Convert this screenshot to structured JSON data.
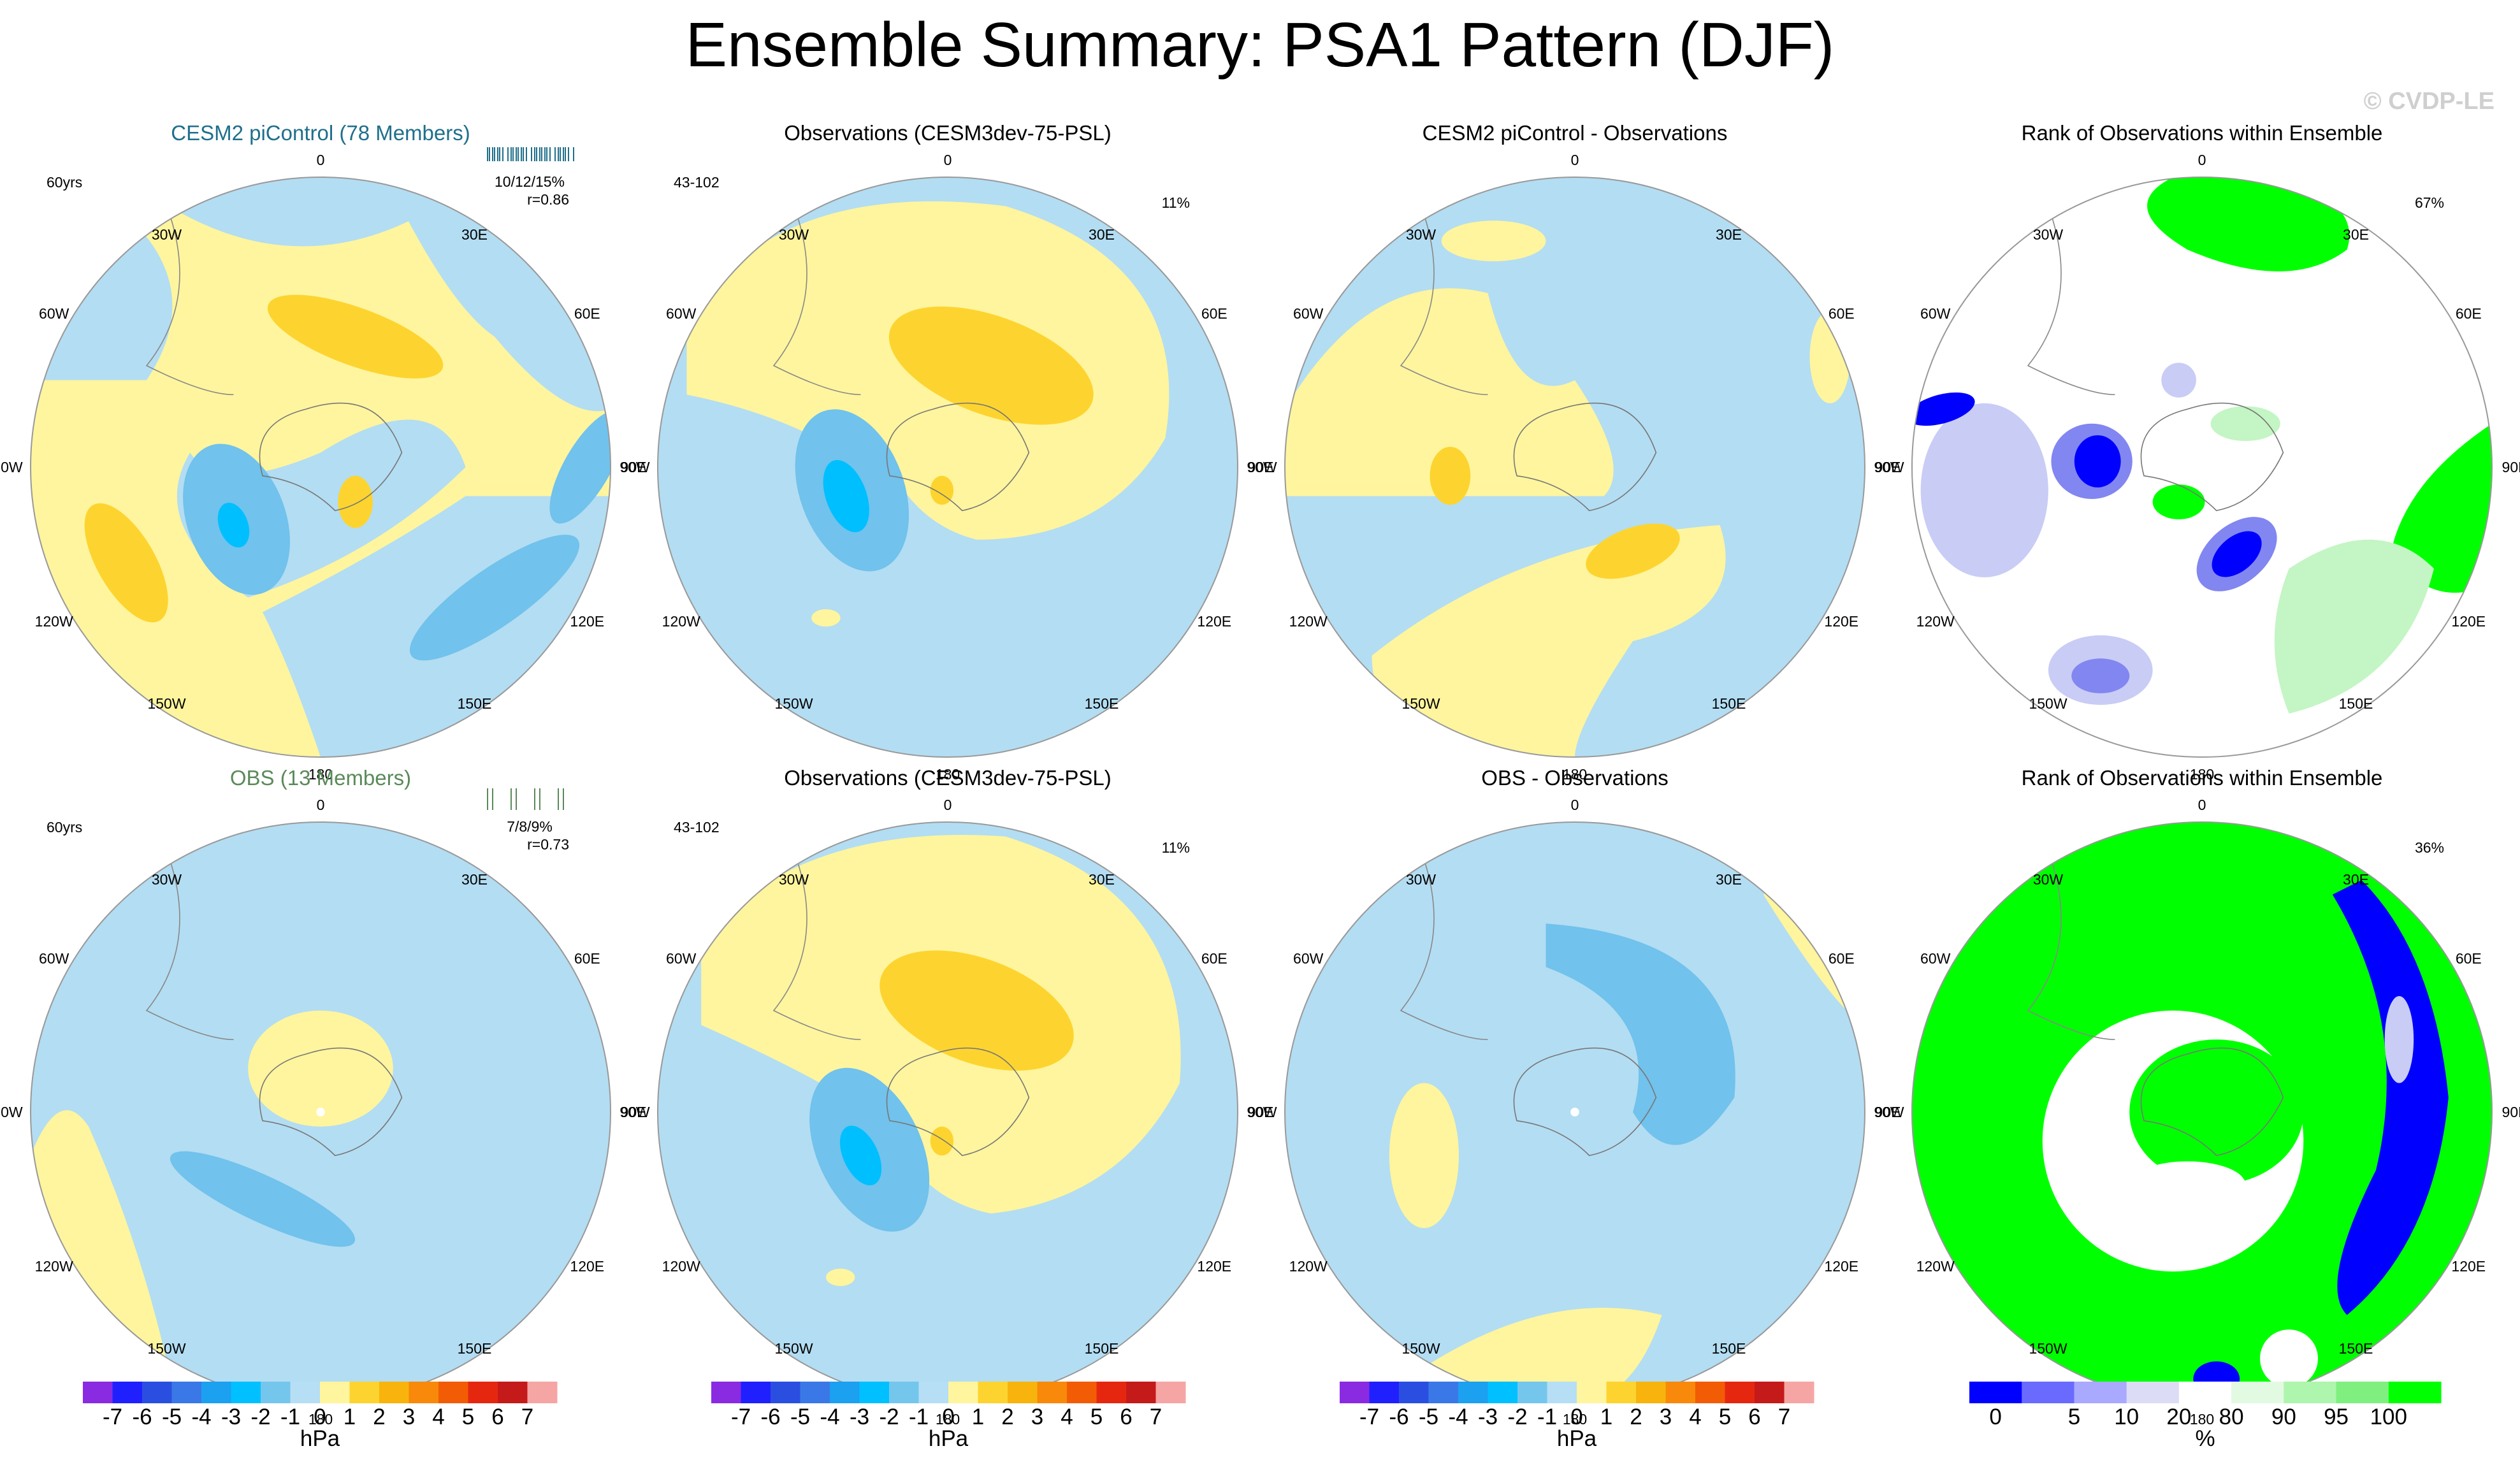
{
  "title": "Ensemble Summary: PSA1 Pattern (DJF)",
  "watermark": "© CVDP-LE",
  "colors": {
    "ocean_blue": "#b3ddf2",
    "light_yellow": "#fff59e",
    "gold": "#fdd42f",
    "mid_blue": "#71c2ec",
    "cyan": "#00bfff",
    "rank_green": "#00ff00",
    "rank_blue": "#0000ff",
    "rank_lavender": "#c9ccf5"
  },
  "lon_labels": [
    "0",
    "30E",
    "60E",
    "90E",
    "120E",
    "150E",
    "180",
    "150W",
    "120W",
    "90W",
    "60W",
    "30W"
  ],
  "rows": [
    {
      "panels": [
        {
          "title": "CESM2 piControl (78 Members)",
          "title_color": "#1f6f8b",
          "left_stat": "60yrs",
          "right_stat": "",
          "stat_line1": "10/12/15%",
          "stat_line2": "r=0.86"
        },
        {
          "title": "Observations (CESM3dev-75-PSL)",
          "title_color": "#000000",
          "left_stat": "43-102",
          "right_stat": "11%"
        },
        {
          "title": "CESM2 piControl - Observations",
          "title_color": "#000000",
          "left_stat": "",
          "right_stat": ""
        },
        {
          "title": "Rank of Observations within Ensemble",
          "title_color": "#000000",
          "left_stat": "",
          "right_stat": "67%"
        }
      ]
    },
    {
      "panels": [
        {
          "title": "OBS (13 Members)",
          "title_color": "#5a8a5a",
          "left_stat": "60yrs",
          "right_stat": "",
          "stat_line1": "7/8/9%",
          "stat_line2": "r=0.73"
        },
        {
          "title": "Observations (CESM3dev-75-PSL)",
          "title_color": "#000000",
          "left_stat": "43-102",
          "right_stat": "11%"
        },
        {
          "title": "OBS - Observations",
          "title_color": "#000000",
          "left_stat": "",
          "right_stat": ""
        },
        {
          "title": "Rank of Observations within Ensemble",
          "title_color": "#000000",
          "left_stat": "",
          "right_stat": "36%"
        }
      ]
    }
  ],
  "colorbar": {
    "ticks": [
      "-7",
      "-6",
      "-5",
      "-4",
      "-3",
      "-2",
      "-1",
      "0",
      "1",
      "2",
      "3",
      "4",
      "5",
      "6",
      "7"
    ],
    "unit": "hPa",
    "colors": [
      "#8a2be2",
      "#2020ff",
      "#2a4fe0",
      "#3a78e8",
      "#1ca0f0",
      "#00c0ff",
      "#74c6ec",
      "#b6def4",
      "#fff59e",
      "#fdd42f",
      "#f8b40c",
      "#f8890a",
      "#f25c05",
      "#e62710",
      "#c41a1a",
      "#f6a5a5"
    ]
  },
  "rank_colorbar": {
    "ticks": [
      "0",
      "5",
      "10",
      "20",
      "80",
      "90",
      "95",
      "100"
    ],
    "unit": "%",
    "colors": [
      "#0000ff",
      "#6a6aff",
      "#a9a9ff",
      "#dcdcf6",
      "#ffffff",
      "#e2fae2",
      "#aef5ae",
      "#7ff07f",
      "#00ff00"
    ]
  }
}
